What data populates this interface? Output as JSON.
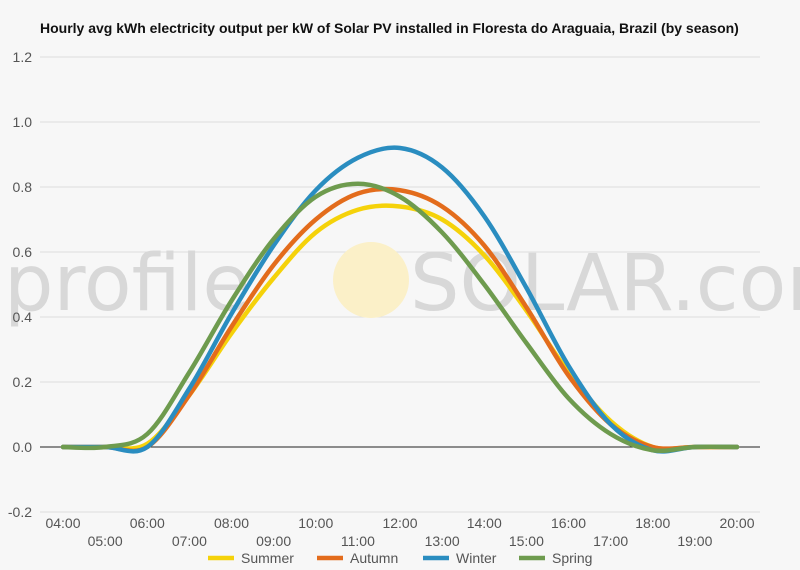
{
  "chart_data": {
    "type": "line",
    "title": "Hourly avg kWh electricity output per kW of Solar PV installed in Floresta do Araguaia, Brazil (by season)",
    "xlabel": "",
    "ylabel": "",
    "x": [
      "04:00",
      "05:00",
      "06:00",
      "07:00",
      "08:00",
      "09:00",
      "10:00",
      "11:00",
      "12:00",
      "13:00",
      "14:00",
      "15:00",
      "16:00",
      "17:00",
      "18:00",
      "19:00",
      "20:00"
    ],
    "x_ticks_top": [
      "04:00",
      "06:00",
      "08:00",
      "10:00",
      "12:00",
      "14:00",
      "16:00",
      "18:00",
      "20:00"
    ],
    "x_ticks_bottom": [
      "05:00",
      "07:00",
      "09:00",
      "11:00",
      "13:00",
      "15:00",
      "17:00",
      "19:00"
    ],
    "y_ticks": [
      "1.2",
      "1.0",
      "0.8",
      "0.6",
      "0.4",
      "0.2",
      "0.0",
      "-0.2"
    ],
    "ylim": [
      -0.2,
      1.2
    ],
    "grid": true,
    "legend_position": "bottom",
    "series": [
      {
        "name": "Summer",
        "color": "#f5d20a",
        "values": [
          0.0,
          0.0,
          0.01,
          0.16,
          0.35,
          0.52,
          0.66,
          0.73,
          0.74,
          0.7,
          0.59,
          0.42,
          0.23,
          0.08,
          0.0,
          0.0,
          0.0
        ]
      },
      {
        "name": "Autumn",
        "color": "#e36c1c",
        "values": [
          0.0,
          0.0,
          0.0,
          0.16,
          0.37,
          0.56,
          0.7,
          0.78,
          0.79,
          0.74,
          0.62,
          0.43,
          0.22,
          0.07,
          0.0,
          0.0,
          0.0
        ]
      },
      {
        "name": "Winter",
        "color": "#2a8dc0",
        "values": [
          0.0,
          0.0,
          0.0,
          0.18,
          0.41,
          0.62,
          0.79,
          0.89,
          0.92,
          0.86,
          0.71,
          0.49,
          0.25,
          0.07,
          -0.01,
          0.0,
          0.0
        ]
      },
      {
        "name": "Spring",
        "color": "#6e9b4e",
        "values": [
          0.0,
          0.0,
          0.04,
          0.23,
          0.45,
          0.64,
          0.77,
          0.81,
          0.77,
          0.66,
          0.5,
          0.32,
          0.15,
          0.04,
          -0.01,
          0.0,
          0.0
        ]
      }
    ]
  },
  "watermark": {
    "part1": "profile",
    "part2": "SOLAR.com"
  }
}
